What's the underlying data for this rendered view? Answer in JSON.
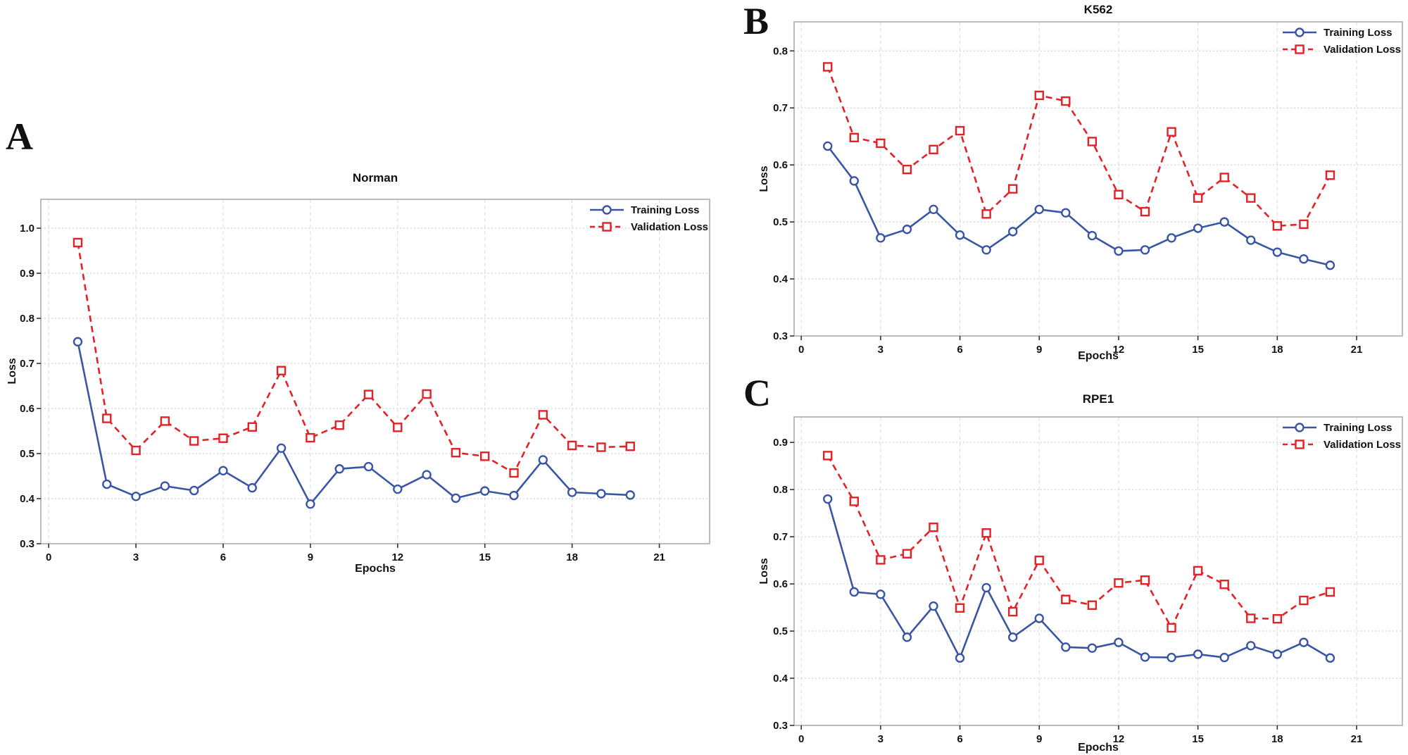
{
  "figure": {
    "background": "#ffffff",
    "panels": [
      {
        "letter": "A",
        "title": "Norman"
      },
      {
        "letter": "B",
        "title": "K562"
      },
      {
        "letter": "C",
        "title": "RPE1"
      }
    ]
  },
  "colors": {
    "training": "#3a55a4",
    "validation": "#e22227",
    "grid_horizontal": "#c9c9c9",
    "grid_vertical": "#dadada",
    "plot_border": "#ababab",
    "tick_mark": "#333333",
    "text": "#111111",
    "marker_fill": "#ffffff"
  },
  "chart_data": [
    {
      "type": "line",
      "panel_letter": "A",
      "title": "Norman",
      "xlabel": "Epochs",
      "ylabel": "Loss",
      "grid": true,
      "legend_position": "top-right",
      "x": [
        1,
        2,
        3,
        4,
        5,
        6,
        7,
        8,
        9,
        10,
        11,
        12,
        13,
        14,
        15,
        16,
        17,
        18,
        19,
        20
      ],
      "xticks": [
        0,
        3,
        6,
        9,
        12,
        15,
        18,
        21
      ],
      "yticks": [
        0.3,
        0.4,
        0.5,
        0.6,
        0.7,
        0.8,
        0.9,
        1.0
      ],
      "xlim": [
        -0.27,
        22.73
      ],
      "ylim": [
        0.3,
        1.064
      ],
      "series": [
        {
          "name": "Training Loss",
          "color": "#3a55a4",
          "marker": "circle",
          "dash": "solid",
          "values": [
            0.748,
            0.432,
            0.405,
            0.428,
            0.418,
            0.462,
            0.424,
            0.512,
            0.388,
            0.466,
            0.471,
            0.421,
            0.453,
            0.401,
            0.417,
            0.407,
            0.486,
            0.414,
            0.411,
            0.408
          ]
        },
        {
          "name": "Validation Loss",
          "color": "#e22227",
          "marker": "square",
          "dash": "dashed",
          "values": [
            0.968,
            0.578,
            0.507,
            0.572,
            0.528,
            0.534,
            0.559,
            0.684,
            0.535,
            0.563,
            0.631,
            0.558,
            0.632,
            0.502,
            0.494,
            0.457,
            0.586,
            0.518,
            0.514,
            0.516
          ]
        }
      ]
    },
    {
      "type": "line",
      "panel_letter": "B",
      "title": "K562",
      "xlabel": "Epochs",
      "ylabel": "Loss",
      "grid": true,
      "legend_position": "top-right",
      "x": [
        1,
        2,
        3,
        4,
        5,
        6,
        7,
        8,
        9,
        10,
        11,
        12,
        13,
        14,
        15,
        16,
        17,
        18,
        19,
        20
      ],
      "xticks": [
        0,
        3,
        6,
        9,
        12,
        15,
        18,
        21
      ],
      "yticks": [
        0.3,
        0.4,
        0.5,
        0.6,
        0.7,
        0.8
      ],
      "xlim": [
        -0.27,
        22.73
      ],
      "ylim": [
        0.3,
        0.851
      ],
      "series": [
        {
          "name": "Training Loss",
          "color": "#3a55a4",
          "marker": "circle",
          "dash": "solid",
          "values": [
            0.633,
            0.572,
            0.472,
            0.487,
            0.522,
            0.477,
            0.451,
            0.483,
            0.522,
            0.516,
            0.476,
            0.449,
            0.451,
            0.472,
            0.489,
            0.5,
            0.468,
            0.447,
            0.435,
            0.424
          ]
        },
        {
          "name": "Validation Loss",
          "color": "#e22227",
          "marker": "square",
          "dash": "dashed",
          "values": [
            0.772,
            0.648,
            0.638,
            0.592,
            0.627,
            0.66,
            0.514,
            0.558,
            0.722,
            0.712,
            0.641,
            0.548,
            0.518,
            0.658,
            0.542,
            0.578,
            0.542,
            0.493,
            0.496,
            0.582
          ]
        }
      ]
    },
    {
      "type": "line",
      "panel_letter": "C",
      "title": "RPE1",
      "xlabel": "Epochs",
      "ylabel": "Loss",
      "grid": true,
      "legend_position": "top-right",
      "x": [
        1,
        2,
        3,
        4,
        5,
        6,
        7,
        8,
        9,
        10,
        11,
        12,
        13,
        14,
        15,
        16,
        17,
        18,
        19,
        20
      ],
      "xticks": [
        0,
        3,
        6,
        9,
        12,
        15,
        18,
        21
      ],
      "yticks": [
        0.3,
        0.4,
        0.5,
        0.6,
        0.7,
        0.8,
        0.9
      ],
      "xlim": [
        -0.27,
        22.73
      ],
      "ylim": [
        0.3,
        0.954
      ],
      "series": [
        {
          "name": "Training Loss",
          "color": "#3a55a4",
          "marker": "circle",
          "dash": "solid",
          "values": [
            0.78,
            0.583,
            0.578,
            0.487,
            0.553,
            0.443,
            0.592,
            0.487,
            0.527,
            0.466,
            0.464,
            0.476,
            0.445,
            0.444,
            0.451,
            0.444,
            0.469,
            0.451,
            0.476,
            0.443
          ]
        },
        {
          "name": "Validation Loss",
          "color": "#e22227",
          "marker": "square",
          "dash": "dashed",
          "values": [
            0.872,
            0.775,
            0.651,
            0.664,
            0.72,
            0.549,
            0.708,
            0.541,
            0.65,
            0.567,
            0.555,
            0.602,
            0.608,
            0.507,
            0.628,
            0.599,
            0.527,
            0.526,
            0.565,
            0.583
          ]
        }
      ]
    }
  ]
}
